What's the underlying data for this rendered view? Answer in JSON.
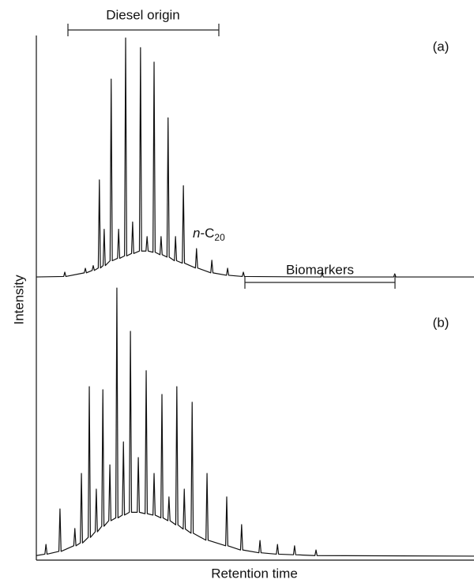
{
  "chart_data": [
    {
      "type": "line",
      "label": "(a)",
      "xlim": [
        0,
        100
      ],
      "ylim": [
        0,
        100
      ],
      "annotations": {
        "diesel": "Diesel origin",
        "biomarkers": "Biomarkers",
        "n_c20": {
          "italic": "n",
          "text": "-C",
          "subscript": "20"
        }
      },
      "x": [
        0,
        6.25,
        6.5,
        6.75,
        10.95,
        11.2,
        11.45,
        12.75,
        13,
        13.25,
        14.15,
        14.4,
        14.65,
        15.25,
        15.5,
        15.75,
        16.85,
        17.1,
        17.35,
        18.55,
        18.8,
        19.05,
        20.15,
        20.4,
        20.65,
        21.75,
        22,
        22.25,
        23.55,
        23.8,
        24.05,
        25.05,
        25.3,
        25.55,
        26.65,
        26.9,
        27.15,
        28.25,
        28.5,
        28.75,
        29.85,
        30.1,
        30.35,
        31.55,
        31.8,
        32.05,
        33.35,
        33.6,
        33.85,
        36.35,
        36.6,
        36.85,
        39.85,
        40.1,
        40.35,
        43.45,
        43.7,
        43.95,
        47.05,
        47.3,
        47.55,
        65.05,
        65.3,
        65.55,
        81.65,
        81.9,
        82.15,
        100
      ],
      "values": [
        0.3,
        0.5,
        2.3,
        0.5,
        2,
        3.9,
        2,
        3,
        5,
        3,
        4,
        40.4,
        4,
        5,
        20,
        5,
        7,
        82,
        7,
        8,
        20,
        8,
        9,
        99,
        9,
        10,
        23,
        10,
        11,
        95,
        11,
        11,
        17,
        11,
        10.5,
        89,
        10.5,
        9.5,
        17,
        9.5,
        8.5,
        66,
        8.5,
        7,
        17,
        7,
        6,
        38,
        6,
        4,
        12,
        4,
        2,
        7.2,
        2,
        1,
        3.9,
        1,
        0.5,
        2.3,
        0.5,
        0.3,
        2.3,
        0.3,
        0.3,
        1.6,
        0.3,
        0.3
      ]
    },
    {
      "type": "line",
      "label": "(b)",
      "xlim": [
        0,
        100
      ],
      "ylim": [
        0,
        100
      ],
      "x": [
        0,
        1.95,
        2.2,
        2.45,
        5.15,
        5.4,
        5.65,
        8.55,
        8.8,
        9.05,
        10.05,
        10.3,
        10.55,
        11.85,
        12.1,
        12.35,
        13.45,
        13.7,
        13.95,
        14.95,
        15.2,
        15.45,
        16.55,
        16.8,
        17.05,
        18.15,
        18.4,
        18.65,
        19.65,
        19.9,
        20.15,
        21.25,
        21.5,
        21.75,
        23.05,
        23.3,
        23.55,
        24.85,
        25.1,
        25.35,
        26.65,
        26.9,
        27.15,
        28.45,
        28.7,
        28.95,
        30.05,
        30.3,
        30.55,
        31.85,
        32.1,
        32.35,
        33.55,
        33.8,
        34.05,
        35.35,
        35.6,
        35.85,
        38.75,
        39,
        39.25,
        43.25,
        43.5,
        43.75,
        46.65,
        46.9,
        47.15,
        50.85,
        51.1,
        51.35,
        54.85,
        55.1,
        55.35,
        58.75,
        59,
        59.25,
        63.65,
        63.9,
        64.15,
        100
      ],
      "values": [
        0.5,
        1,
        4.5,
        1,
        2,
        17.2,
        2,
        4,
        10.2,
        4,
        5,
        29.9,
        5,
        7,
        61,
        7,
        9,
        24.3,
        9,
        11,
        59.9,
        11,
        13,
        33,
        13,
        14,
        96.3,
        14,
        15,
        41.2,
        15,
        16,
        80.8,
        16,
        16,
        35.6,
        16,
        15.5,
        66.7,
        15.5,
        15,
        29.9,
        15,
        14,
        58.2,
        14,
        13,
        21.5,
        13,
        11.5,
        61,
        11.5,
        10,
        24.3,
        10,
        8.5,
        55.4,
        8.5,
        6,
        29.9,
        6,
        4,
        21.5,
        4,
        2.5,
        11.6,
        2.5,
        1.5,
        5.9,
        1.5,
        1,
        4.5,
        1,
        0.8,
        4,
        0.8,
        0.5,
        2.5,
        0.5,
        0.3
      ]
    }
  ],
  "y_label": "Intensity",
  "x_label": "Retention time"
}
